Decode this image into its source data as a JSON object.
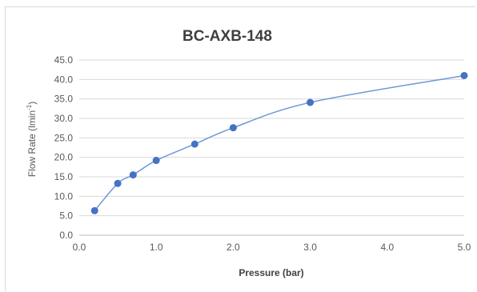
{
  "chart_data": {
    "type": "scatter",
    "title": "BC-AXB-148",
    "xlabel": "Pressure (bar)",
    "ylabel": {
      "prefix": "Flow Rate (lmin",
      "superscript": "-1",
      "suffix": ")"
    },
    "xlim": [
      0,
      5
    ],
    "ylim": [
      0,
      45
    ],
    "x_ticks": [
      "0.0",
      "1.0",
      "2.0",
      "3.0",
      "4.0",
      "5.0"
    ],
    "y_ticks": [
      "0.0",
      "5.0",
      "10.0",
      "15.0",
      "20.0",
      "25.0",
      "30.0",
      "35.0",
      "40.0",
      "45.0"
    ],
    "grid": true,
    "legend": "none",
    "smooth_line": true,
    "series": [
      {
        "color": "#4472c4",
        "line_color": "#6f98d4",
        "points": [
          {
            "x": 0.2,
            "y": 6.3
          },
          {
            "x": 0.5,
            "y": 13.3
          },
          {
            "x": 0.7,
            "y": 15.5
          },
          {
            "x": 1.0,
            "y": 19.2
          },
          {
            "x": 1.5,
            "y": 23.4
          },
          {
            "x": 2.0,
            "y": 27.6
          },
          {
            "x": 3.0,
            "y": 34.1
          },
          {
            "x": 5.0,
            "y": 41.0
          }
        ]
      }
    ]
  }
}
